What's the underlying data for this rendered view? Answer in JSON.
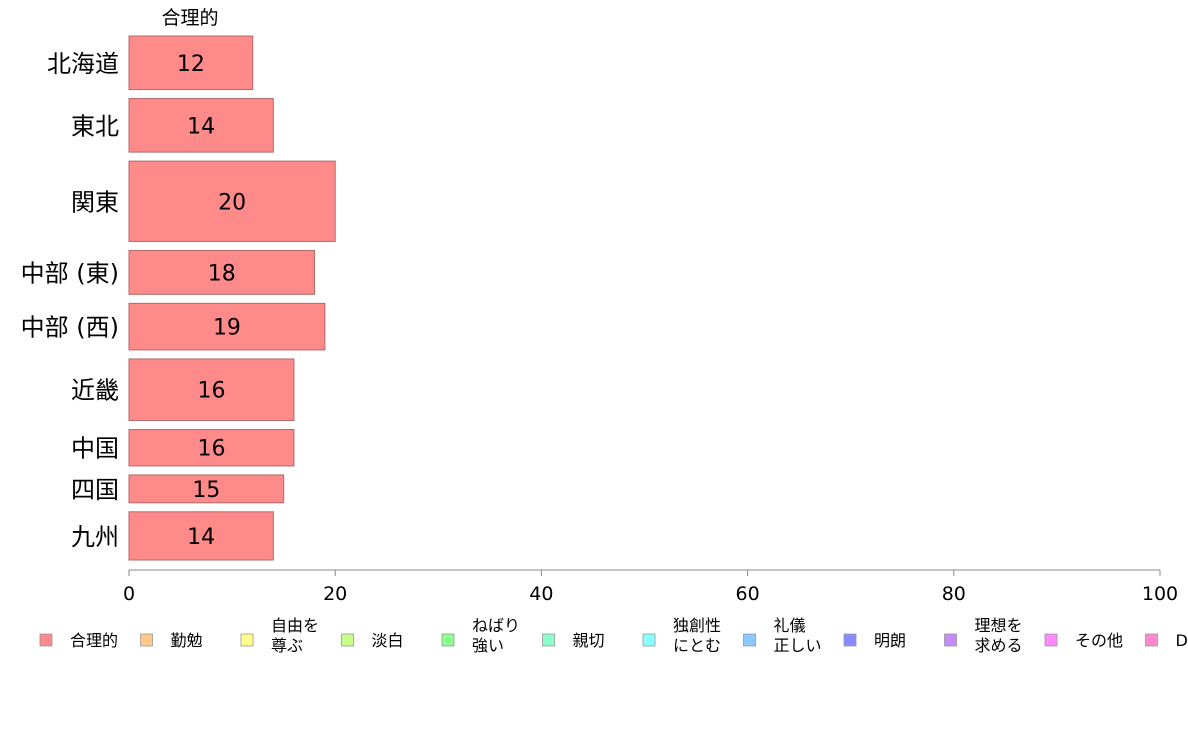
{
  "chart_data": {
    "type": "bar",
    "orientation": "horizontal",
    "series_label": "合理的",
    "categories": [
      "北海道",
      "東北",
      "関東",
      "中部 (東)",
      "中部 (西)",
      "近畿",
      "中国",
      "四国",
      "九州"
    ],
    "values": [
      12,
      14,
      20,
      18,
      19,
      16,
      16,
      15,
      14
    ],
    "data_labels": [
      "12",
      "14",
      "20",
      "18",
      "19",
      "16",
      "16",
      "15",
      "14"
    ],
    "bar_weights": [
      1,
      1,
      1.5,
      0.82,
      0.87,
      1.15,
      0.68,
      0.52,
      0.9
    ],
    "xlim": [
      0,
      100
    ],
    "xticks": [
      0,
      20,
      40,
      60,
      80,
      100
    ],
    "xtick_labels": [
      "0",
      "20",
      "40",
      "60",
      "80",
      "100"
    ],
    "bar_color": "#ff8a8a",
    "bar_border": "#b06a6a",
    "legend_position": "bottom",
    "legend": [
      {
        "lines": [
          "合理的"
        ],
        "color": "#ff8a8a"
      },
      {
        "lines": [
          "勤勉"
        ],
        "color": "#ffc88a"
      },
      {
        "lines": [
          "自由を",
          "尊ぶ"
        ],
        "color": "#ffff8a"
      },
      {
        "lines": [
          "淡白"
        ],
        "color": "#c8ff8a"
      },
      {
        "lines": [
          "ねばり",
          "強い"
        ],
        "color": "#8aff8a"
      },
      {
        "lines": [
          "親切"
        ],
        "color": "#8affc8"
      },
      {
        "lines": [
          "独創性",
          "にとむ"
        ],
        "color": "#8affff"
      },
      {
        "lines": [
          "礼儀",
          "正しい"
        ],
        "color": "#8ac8ff"
      },
      {
        "lines": [
          "明朗"
        ],
        "color": "#8a8aff"
      },
      {
        "lines": [
          "理想を",
          "求める"
        ],
        "color": "#c88aff"
      },
      {
        "lines": [
          "その他"
        ],
        "color": "#ff8aff"
      },
      {
        "lines": [
          "D"
        ],
        "color": "#ff8ac8"
      }
    ]
  }
}
